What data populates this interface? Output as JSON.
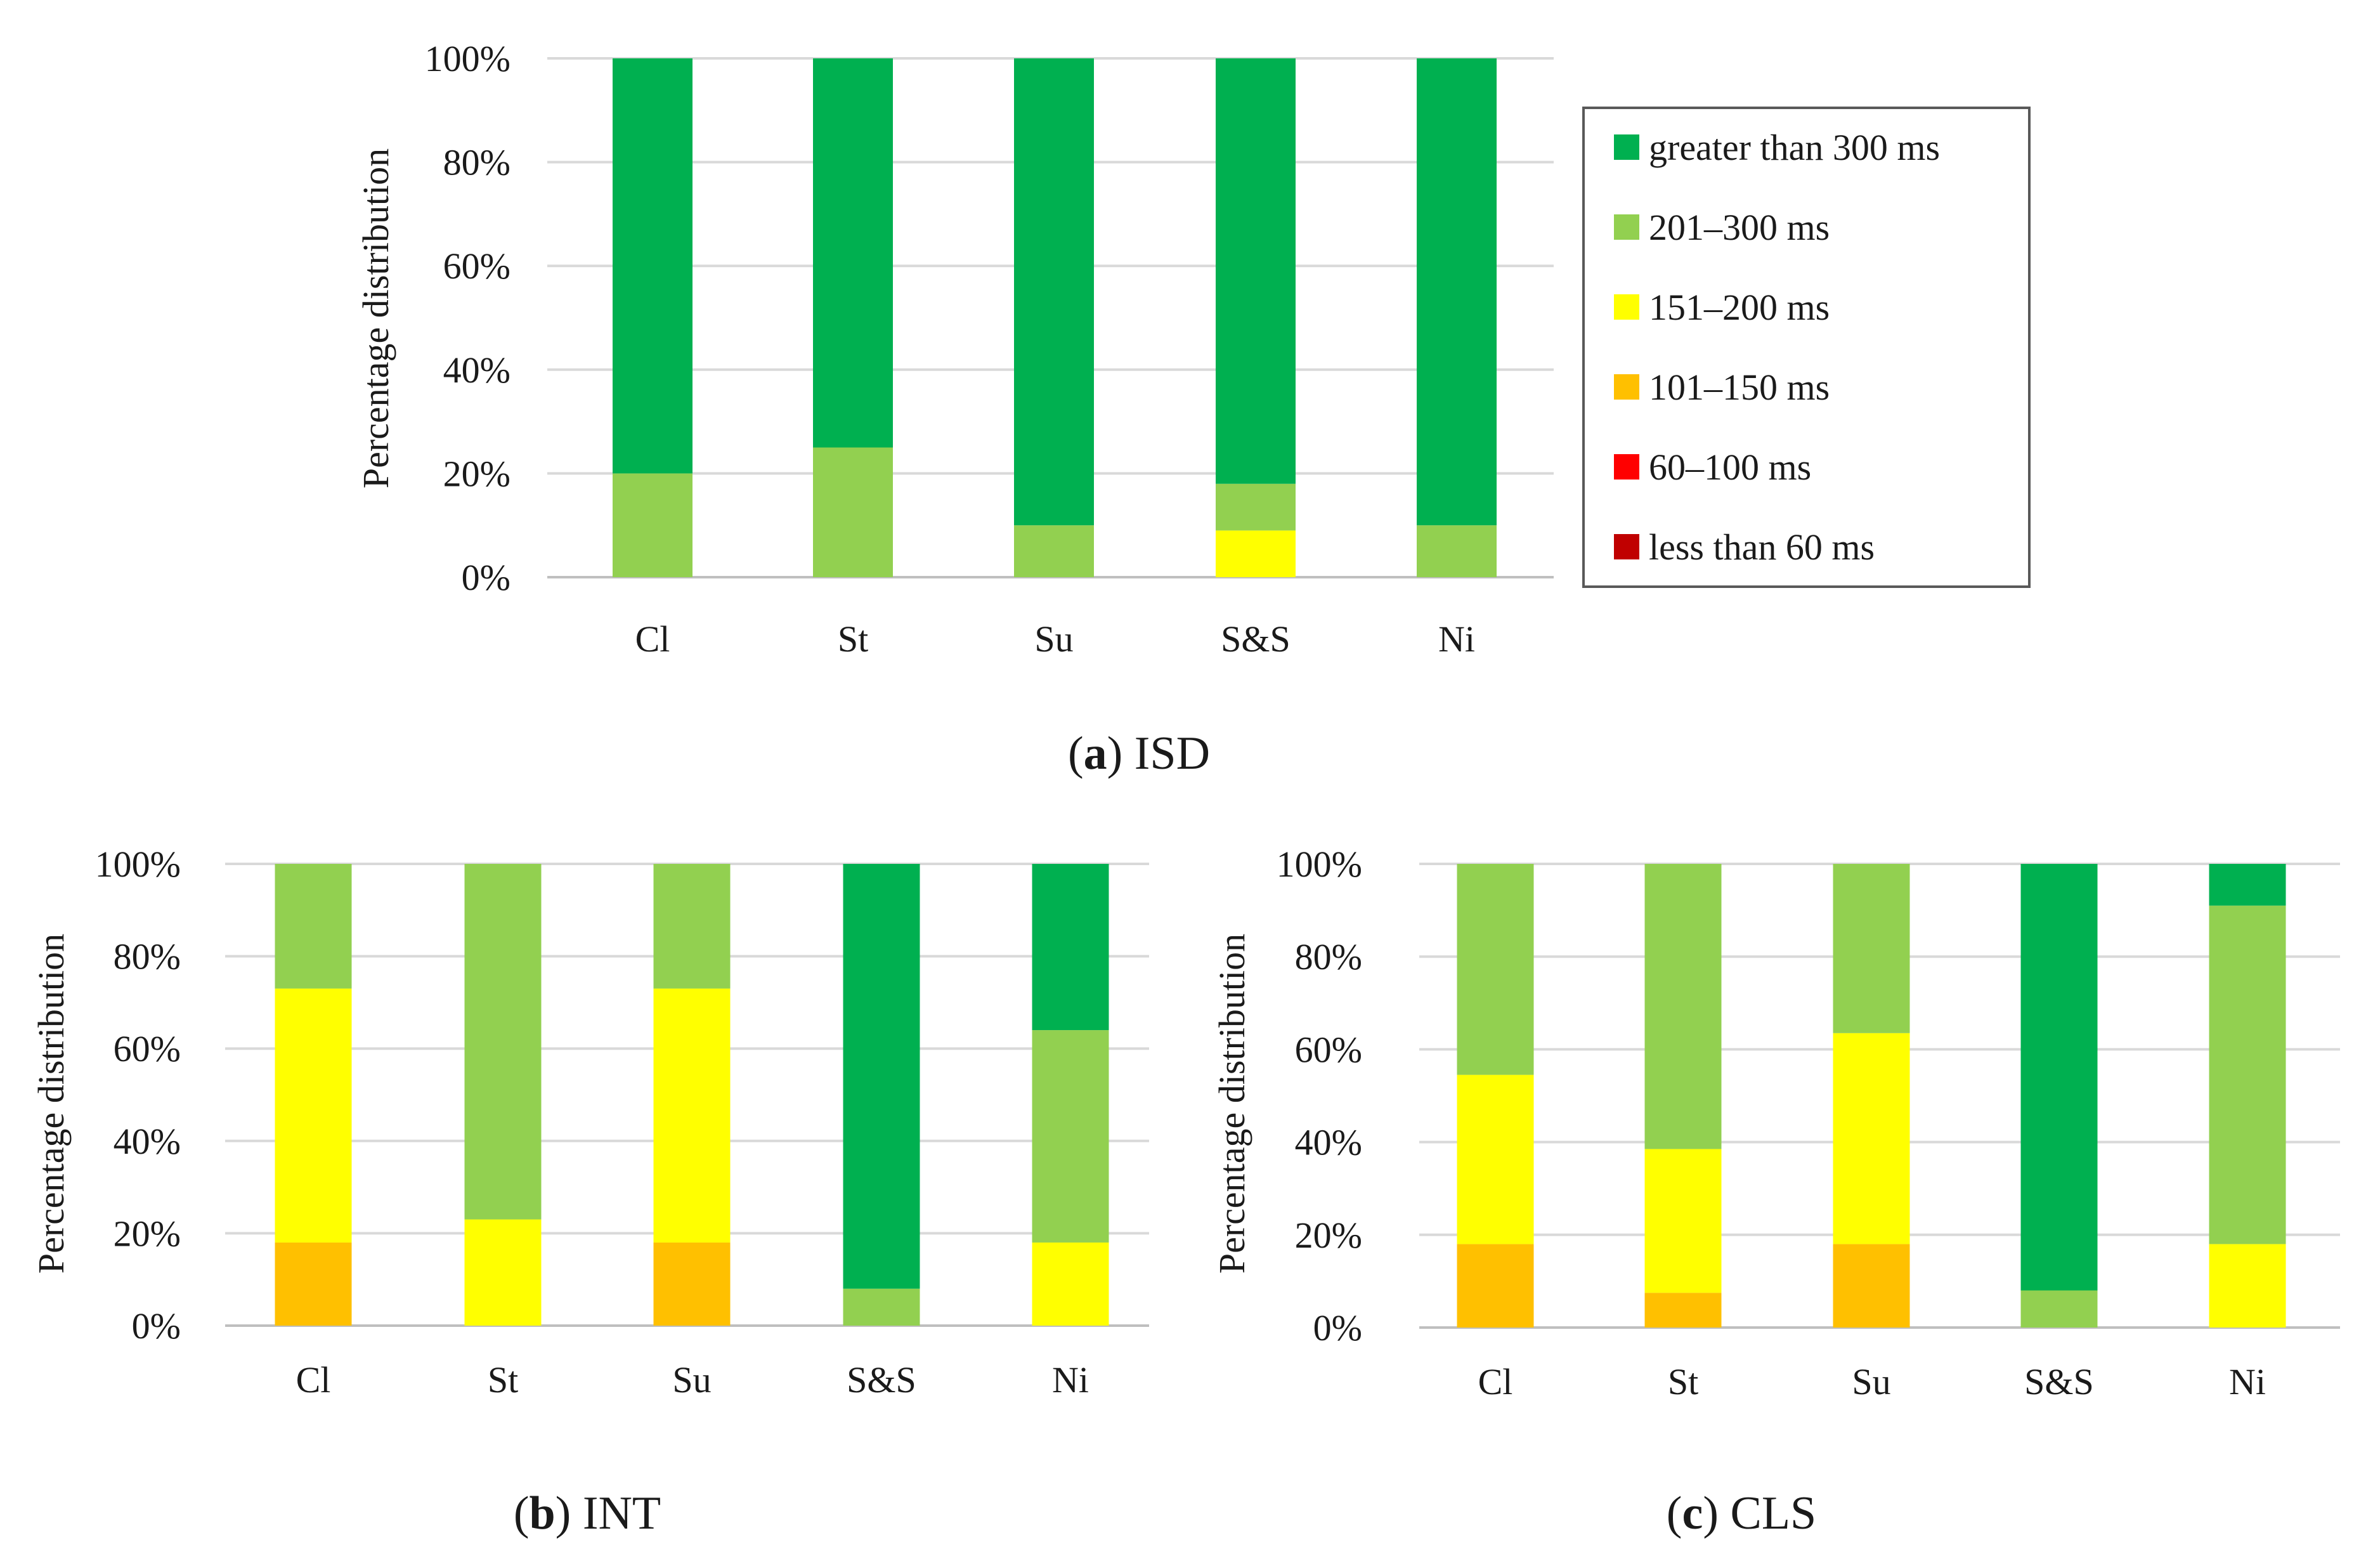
{
  "legend": {
    "entries": [
      {
        "key": "gt300",
        "label": "greater than 300 ms",
        "color": "#00B050"
      },
      {
        "key": "r201_300",
        "label": "201–300 ms",
        "color": "#92D050"
      },
      {
        "key": "r151_200",
        "label": "151–200 ms",
        "color": "#FFFF00"
      },
      {
        "key": "r101_150",
        "label": "101–150 ms",
        "color": "#FFC000"
      },
      {
        "key": "r60_100",
        "label": "60–100 ms",
        "color": "#FF0000"
      },
      {
        "key": "lt60",
        "label": "less than 60 ms",
        "color": "#C00000"
      }
    ]
  },
  "chart_data": [
    {
      "id": "isd",
      "type": "bar",
      "stacked": true,
      "caption_letter": "a",
      "caption_text": "ISD",
      "ylabel": "Percentage distribution",
      "ylim": [
        0,
        100
      ],
      "ytick_labels": [
        "0%",
        "20%",
        "40%",
        "60%",
        "80%",
        "100%"
      ],
      "categories": [
        "Cl",
        "St",
        "Su",
        "S&S",
        "Ni"
      ],
      "series": [
        {
          "name": "less than 60 ms",
          "values": [
            0,
            0,
            0,
            0,
            0
          ]
        },
        {
          "name": "60–100 ms",
          "values": [
            0,
            0,
            0,
            0,
            0
          ]
        },
        {
          "name": "101–150 ms",
          "values": [
            0,
            0,
            0,
            0,
            0
          ]
        },
        {
          "name": "151–200 ms",
          "values": [
            0,
            0,
            0,
            9,
            0
          ]
        },
        {
          "name": "201–300 ms",
          "values": [
            20,
            25,
            10,
            9,
            10
          ]
        },
        {
          "name": "greater than 300 ms",
          "values": [
            80,
            75,
            90,
            82,
            90
          ]
        }
      ]
    },
    {
      "id": "int",
      "type": "bar",
      "stacked": true,
      "caption_letter": "b",
      "caption_text": "INT",
      "ylabel": "Percentage distribution",
      "ylim": [
        0,
        100
      ],
      "ytick_labels": [
        "0%",
        "20%",
        "40%",
        "60%",
        "80%",
        "100%"
      ],
      "categories": [
        "Cl",
        "St",
        "Su",
        "S&S",
        "Ni"
      ],
      "series": [
        {
          "name": "less than 60 ms",
          "values": [
            0,
            0,
            0,
            0,
            0
          ]
        },
        {
          "name": "60–100 ms",
          "values": [
            0,
            0,
            0,
            0,
            0
          ]
        },
        {
          "name": "101–150 ms",
          "values": [
            18,
            0,
            18,
            0,
            0
          ]
        },
        {
          "name": "151–200 ms",
          "values": [
            55,
            23,
            55,
            0,
            18
          ]
        },
        {
          "name": "201–300 ms",
          "values": [
            27,
            77,
            27,
            8,
            46
          ]
        },
        {
          "name": "greater than 300 ms",
          "values": [
            0,
            0,
            0,
            92,
            36
          ]
        }
      ]
    },
    {
      "id": "cls",
      "type": "bar",
      "stacked": true,
      "caption_letter": "c",
      "caption_text": "CLS",
      "ylabel": "Percentage distribution",
      "ylim": [
        0,
        100
      ],
      "ytick_labels": [
        "0%",
        "20%",
        "40%",
        "60%",
        "80%",
        "100%"
      ],
      "categories": [
        "Cl",
        "St",
        "Su",
        "S&S",
        "Ni"
      ],
      "series": [
        {
          "name": "less than 60 ms",
          "values": [
            0,
            0,
            0,
            0,
            0
          ]
        },
        {
          "name": "60–100 ms",
          "values": [
            0,
            0,
            0,
            0,
            0
          ]
        },
        {
          "name": "101–150 ms",
          "values": [
            18,
            7.5,
            18,
            0,
            0
          ]
        },
        {
          "name": "151–200 ms",
          "values": [
            36.5,
            31,
            45.5,
            0,
            18
          ]
        },
        {
          "name": "201–300 ms",
          "values": [
            45.5,
            61.5,
            36.5,
            8,
            73
          ]
        },
        {
          "name": "greater than 300 ms",
          "values": [
            0,
            0,
            0,
            92,
            9
          ]
        }
      ]
    }
  ]
}
